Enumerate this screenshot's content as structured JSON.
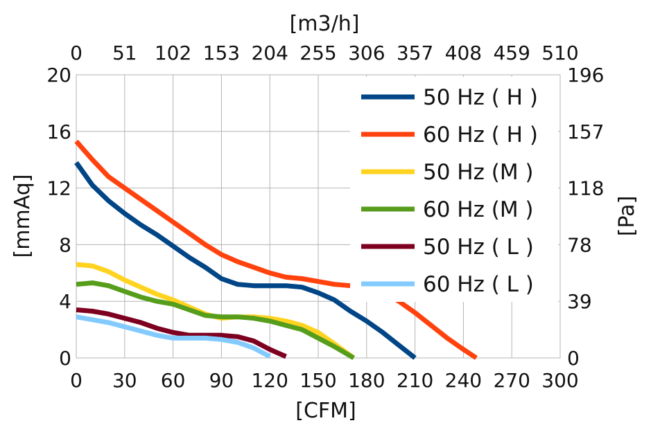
{
  "chart_data": {
    "type": "line",
    "xlabel": "[CFM]",
    "ylabel": "[mmAq]",
    "x2label": "[m3/h]",
    "y2label": "[Pa]",
    "xlim": [
      0,
      300
    ],
    "ylim": [
      0,
      20
    ],
    "x_ticks": [
      "0",
      "30",
      "60",
      "90",
      "120",
      "150",
      "180",
      "210",
      "240",
      "270",
      "300"
    ],
    "y_ticks": [
      "0",
      "4",
      "8",
      "12",
      "16",
      "20"
    ],
    "x2_ticks": [
      "0",
      "51",
      "102",
      "153",
      "204",
      "255",
      "306",
      "357",
      "408",
      "459",
      "510"
    ],
    "y2_ticks": [
      "0",
      "39",
      "78",
      "118",
      "157",
      "196"
    ],
    "grid": true,
    "legend_position": "top-right",
    "series": [
      {
        "name": "50 Hz ( H )",
        "color": "#004586",
        "x": [
          0,
          10,
          20,
          30,
          40,
          50,
          60,
          70,
          80,
          90,
          100,
          110,
          120,
          130,
          140,
          150,
          160,
          170,
          180,
          190,
          200,
          210
        ],
        "y": [
          13.8,
          12.2,
          11.1,
          10.2,
          9.4,
          8.7,
          7.9,
          7.1,
          6.4,
          5.6,
          5.2,
          5.1,
          5.1,
          5.1,
          5.0,
          4.6,
          4.1,
          3.3,
          2.6,
          1.8,
          0.9,
          0.0
        ]
      },
      {
        "name": "60 Hz ( H )",
        "color": "#ff420e",
        "x": [
          0,
          10,
          20,
          30,
          40,
          50,
          60,
          70,
          80,
          90,
          100,
          110,
          120,
          130,
          140,
          150,
          160,
          170,
          180,
          190,
          200,
          210,
          220,
          230,
          240,
          248
        ],
        "y": [
          15.3,
          14.0,
          12.8,
          12.0,
          11.2,
          10.4,
          9.6,
          8.8,
          8.0,
          7.3,
          6.8,
          6.4,
          6.0,
          5.7,
          5.6,
          5.4,
          5.2,
          5.1,
          5.0,
          4.7,
          4.0,
          3.2,
          2.3,
          1.4,
          0.6,
          0.0
        ]
      },
      {
        "name": "50 Hz (M )",
        "color": "#ffd320",
        "x": [
          0,
          10,
          20,
          30,
          40,
          50,
          60,
          70,
          80,
          90,
          100,
          110,
          120,
          130,
          140,
          150,
          160,
          172
        ],
        "y": [
          6.6,
          6.5,
          6.1,
          5.5,
          5.0,
          4.5,
          4.1,
          3.6,
          3.1,
          2.8,
          2.9,
          2.9,
          2.8,
          2.6,
          2.3,
          1.8,
          1.0,
          0.0
        ]
      },
      {
        "name": "60 Hz (M )",
        "color": "#579d1c",
        "x": [
          0,
          10,
          20,
          30,
          40,
          50,
          60,
          70,
          80,
          90,
          100,
          110,
          120,
          130,
          140,
          150,
          160,
          172
        ],
        "y": [
          5.2,
          5.3,
          5.1,
          4.7,
          4.3,
          4.0,
          3.8,
          3.4,
          3.0,
          2.9,
          2.9,
          2.8,
          2.6,
          2.3,
          2.0,
          1.4,
          0.8,
          0.0
        ]
      },
      {
        "name": "50 Hz ( L )",
        "color": "#7e0021",
        "x": [
          0,
          10,
          20,
          30,
          40,
          50,
          60,
          70,
          80,
          90,
          100,
          110,
          120,
          130
        ],
        "y": [
          3.4,
          3.3,
          3.1,
          2.8,
          2.5,
          2.1,
          1.8,
          1.6,
          1.6,
          1.6,
          1.5,
          1.2,
          0.6,
          0.1
        ]
      },
      {
        "name": "60 Hz ( L )",
        "color": "#83caff",
        "x": [
          0,
          10,
          20,
          30,
          40,
          50,
          60,
          70,
          80,
          90,
          100,
          110,
          120
        ],
        "y": [
          2.9,
          2.7,
          2.5,
          2.2,
          1.9,
          1.6,
          1.4,
          1.4,
          1.4,
          1.3,
          1.1,
          0.7,
          0.1
        ]
      }
    ]
  }
}
